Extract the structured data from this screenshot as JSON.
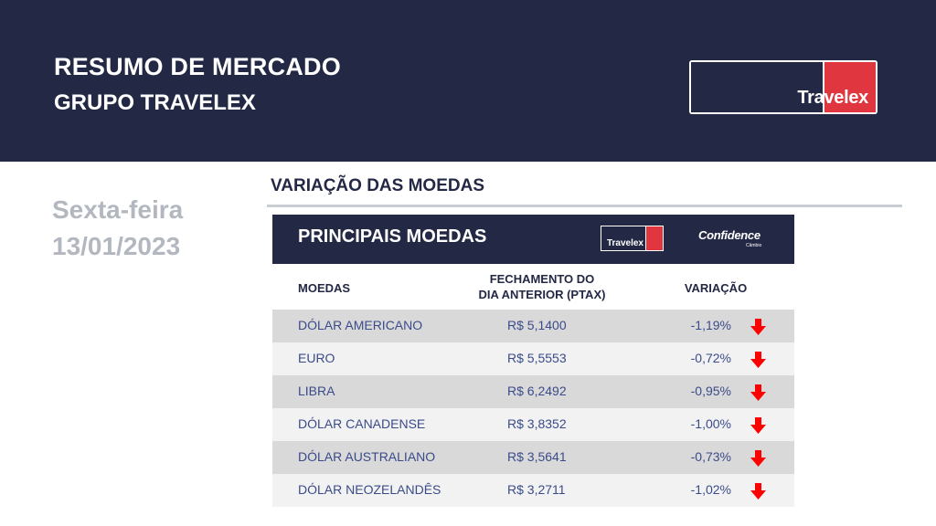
{
  "header": {
    "title": "RESUMO DE MERCADO",
    "subtitle": "GRUPO TRAVELEX",
    "logo_text": "Travelex"
  },
  "date": {
    "weekday": "Sexta-feira",
    "date": "13/01/2023"
  },
  "section": {
    "title": "VARIAÇÃO DAS MOEDAS"
  },
  "table": {
    "title": "PRINCIPAIS MOEDAS",
    "logo_travelex": "Travelex",
    "logo_confidence": "Confidence",
    "logo_confidence_sub": "Câmbio",
    "columns": {
      "currency": "MOEDAS",
      "close_line1": "FECHAMENTO DO",
      "close_line2": "DIA ANTERIOR (PTAX)",
      "variation": "VARIAÇÃO"
    },
    "rows": [
      {
        "currency": "DÓLAR AMERICANO",
        "close": "R$ 5,1400",
        "variation": "-1,19%",
        "direction": "down"
      },
      {
        "currency": "EURO",
        "close": "R$ 5,5553",
        "variation": "-0,72%",
        "direction": "down"
      },
      {
        "currency": "LIBRA",
        "close": "R$ 6,2492",
        "variation": "-0,95%",
        "direction": "down"
      },
      {
        "currency": "DÓLAR CANADENSE",
        "close": "R$ 3,8352",
        "variation": "-1,00%",
        "direction": "down"
      },
      {
        "currency": "DÓLAR AUSTRALIANO",
        "close": "R$ 3,5641",
        "variation": "-0,73%",
        "direction": "down"
      },
      {
        "currency": "DÓLAR NEOZELANDÊS",
        "close": "R$ 3,2711",
        "variation": "-1,02%",
        "direction": "down"
      }
    ]
  },
  "colors": {
    "navy": "#232844",
    "brand_red": "#e0363f",
    "arrow_red": "#ff0000",
    "date_gray": "#b3b7bf",
    "row_text": "#3b4b8a"
  }
}
